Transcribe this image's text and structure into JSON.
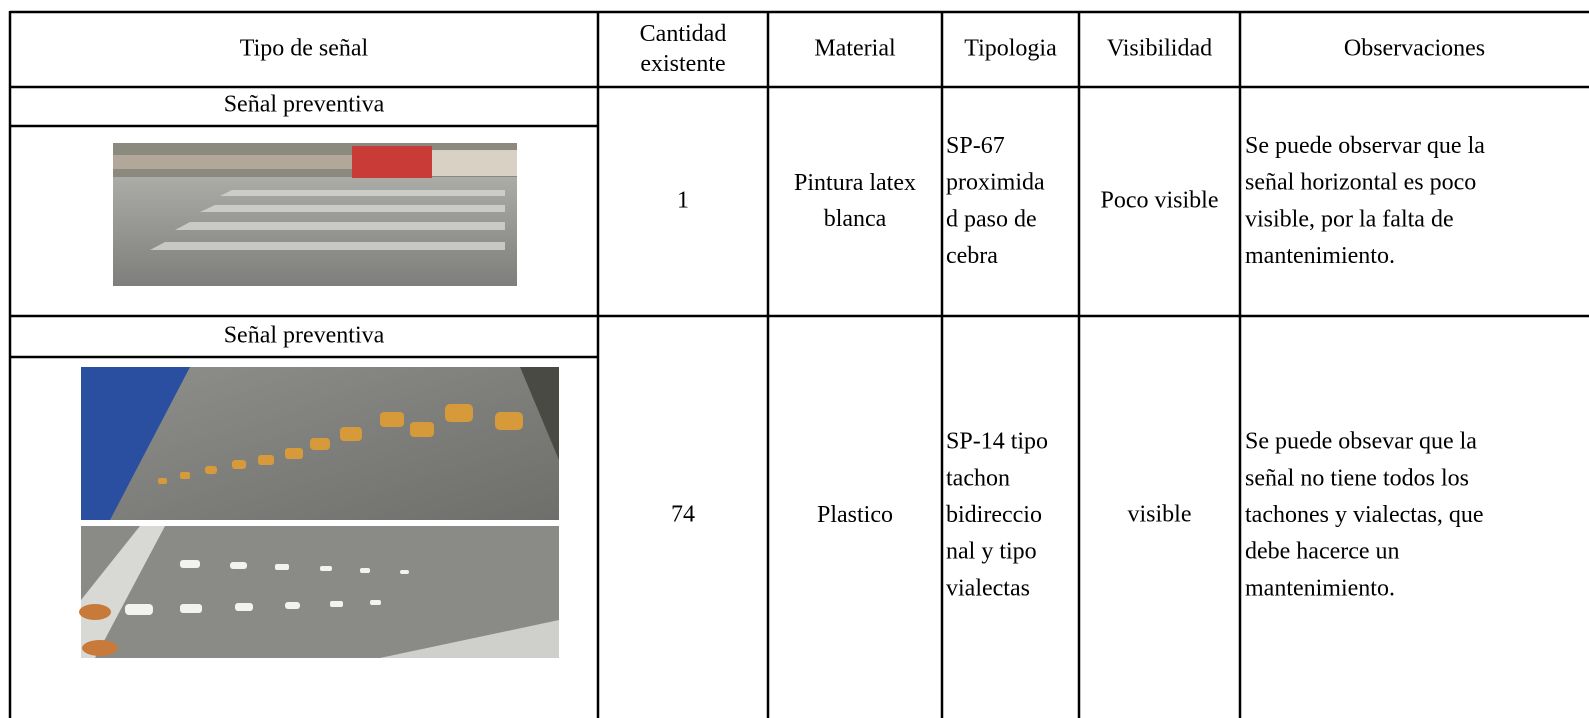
{
  "table": {
    "header": [
      "Tipo de señal",
      [
        "Cantidad",
        "existente"
      ],
      "Material",
      "Tipologia",
      "Visibilidad",
      "Observaciones"
    ],
    "rows": [
      {
        "tipo": "Señal preventiva",
        "cantidad": 1,
        "material": [
          "Pintura latex",
          "blanca"
        ],
        "tipologia": [
          "SP-67",
          "proximida",
          "d paso de",
          "cebra"
        ],
        "visibilidad": "Poco visible",
        "observaciones": [
          "Se puede observar que la",
          "señal horizontal es poco",
          "visible, por la falta de",
          "mantenimiento."
        ]
      },
      {
        "tipo": "Señal preventiva",
        "cantidad": 74,
        "material": [
          "Plastico"
        ],
        "tipologia": [
          "SP-14 tipo",
          "tachon",
          "bidireccio",
          "nal y tipo",
          "vialectas"
        ],
        "visibilidad": "visible",
        "observaciones": [
          "Se puede obsevar que la",
          "señal no tiene todos los",
          "tachones y vialectas, que",
          "debe hacerce un",
          "mantenimiento."
        ]
      }
    ]
  }
}
